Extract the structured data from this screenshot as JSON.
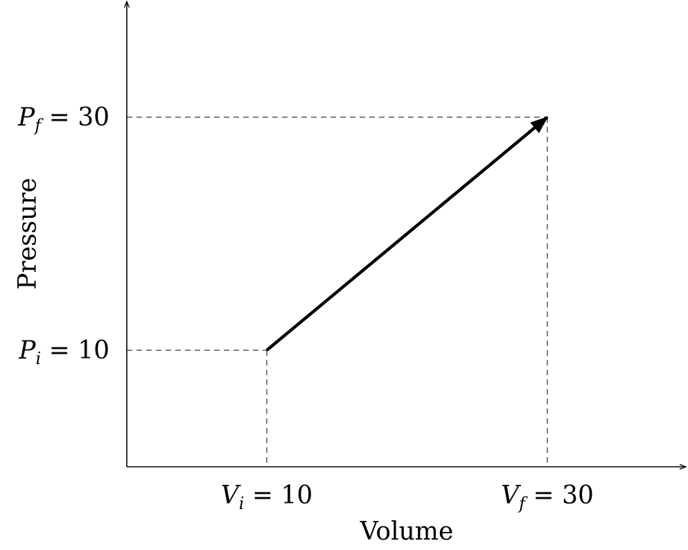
{
  "chart_data": {
    "type": "line",
    "title": "",
    "xlabel": "Volume",
    "ylabel": "Pressure",
    "xlim": [
      0,
      40
    ],
    "ylim": [
      0,
      45
    ],
    "grid": false,
    "series": [
      {
        "x": [
          10,
          30
        ],
        "y": [
          10,
          30
        ],
        "arrow": "end"
      }
    ],
    "x_ticks": [
      {
        "value": 10,
        "var": "V",
        "sub": "i",
        "text": "= 10"
      },
      {
        "value": 30,
        "var": "V",
        "sub": "f",
        "text": "= 30"
      }
    ],
    "y_ticks": [
      {
        "value": 10,
        "var": "P",
        "sub": "i",
        "text": "= 10"
      },
      {
        "value": 30,
        "var": "P",
        "sub": "f",
        "text": "= 30"
      }
    ]
  }
}
